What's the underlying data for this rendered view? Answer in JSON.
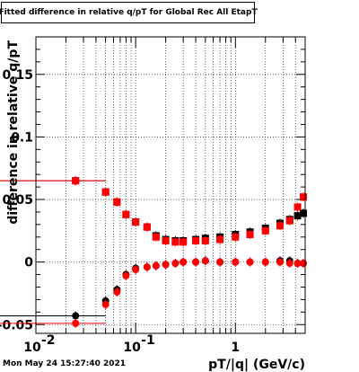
{
  "title": "Fitted difference in relative q/pT for Global Rec All EtapT",
  "timestamp": "Mon May 24 15:27:40 2021",
  "chart_data": {
    "type": "scatter",
    "title": "Fitted difference in relative q/pT for Global Rec All EtapT",
    "xlabel": "pT/|q| (GeV/c)",
    "ylabel": "difference in relative q/pT",
    "xscale": "log",
    "xlim": [
      0.01,
      5.0
    ],
    "ylim": [
      -0.057,
      0.18
    ],
    "grid": true,
    "x_ticks": [
      {
        "value": 0.01,
        "label": "10",
        "exp": "-2"
      },
      {
        "value": 0.1,
        "label": "10",
        "exp": "-1"
      },
      {
        "value": 1,
        "label": "1",
        "exp": ""
      }
    ],
    "y_ticks": [
      {
        "value": -0.05,
        "label": "-0.05"
      },
      {
        "value": 0,
        "label": "0"
      },
      {
        "value": 0.05,
        "label": "0.05"
      },
      {
        "value": 0.1,
        "label": "0.1"
      },
      {
        "value": 0.15,
        "label": "0.15"
      }
    ],
    "series": [
      {
        "color": "#000000",
        "marker": "square",
        "x": [
          0.025,
          0.05,
          0.065,
          0.08,
          0.1,
          0.13,
          0.16,
          0.2,
          0.25,
          0.3,
          0.4,
          0.5,
          0.7,
          1.0,
          1.4,
          2.0,
          2.8,
          3.5,
          4.2,
          4.8
        ],
        "y": [
          0.065,
          0.056,
          0.048,
          0.038,
          0.032,
          0.028,
          0.021,
          0.018,
          0.017,
          0.017,
          0.018,
          0.019,
          0.02,
          0.022,
          0.024,
          0.027,
          0.031,
          0.034,
          0.037,
          0.039
        ],
        "xerr_low": [
          0.025,
          0,
          0,
          0,
          0,
          0,
          0,
          0,
          0,
          0,
          0,
          0,
          0,
          0,
          0,
          0,
          0,
          0,
          0,
          0
        ],
        "xerr_high": [
          0.025,
          0,
          0,
          0,
          0,
          0,
          0,
          0,
          0,
          0,
          0,
          0,
          0,
          0,
          0,
          0,
          0,
          0,
          0,
          0
        ]
      },
      {
        "color": "#000000",
        "marker": "circle",
        "x": [
          0.025,
          0.05,
          0.065,
          0.08,
          0.1,
          0.13,
          0.16,
          0.2,
          0.25,
          0.3,
          0.4,
          0.5,
          0.7,
          1.0,
          1.4,
          2.0,
          2.8,
          3.5,
          4.2,
          4.8
        ],
        "y": [
          -0.043,
          -0.031,
          -0.022,
          -0.01,
          -0.005,
          -0.004,
          -0.003,
          -0.002,
          -0.001,
          0.0,
          0.0,
          0.001,
          0.0,
          0.0,
          0.0,
          0.0,
          0.001,
          0.001,
          -0.001,
          -0.001
        ],
        "xerr_low": [
          0.025,
          0,
          0,
          0,
          0,
          0,
          0,
          0,
          0,
          0,
          0,
          0,
          0,
          0,
          0,
          0,
          0,
          0,
          0,
          0
        ],
        "xerr_high": [
          0.025,
          0,
          0,
          0,
          0,
          0,
          0,
          0,
          0,
          0,
          0,
          0,
          0,
          0,
          0,
          0,
          0,
          0,
          0,
          0
        ]
      },
      {
        "color": "#ff0000",
        "marker": "square",
        "x": [
          0.025,
          0.05,
          0.065,
          0.08,
          0.1,
          0.13,
          0.16,
          0.2,
          0.25,
          0.3,
          0.4,
          0.5,
          0.7,
          1.0,
          1.4,
          2.0,
          2.8,
          3.5,
          4.2,
          4.8
        ],
        "y": [
          0.065,
          0.056,
          0.048,
          0.038,
          0.032,
          0.028,
          0.02,
          0.017,
          0.016,
          0.016,
          0.017,
          0.017,
          0.018,
          0.02,
          0.022,
          0.025,
          0.029,
          0.033,
          0.044,
          0.052
        ],
        "xerr_low": [
          0.025,
          0,
          0,
          0,
          0,
          0,
          0,
          0,
          0,
          0,
          0,
          0,
          0,
          0,
          0,
          0,
          0,
          0,
          0,
          0
        ],
        "xerr_high": [
          0.025,
          0,
          0,
          0,
          0,
          0,
          0,
          0,
          0,
          0,
          0,
          0,
          0,
          0,
          0,
          0,
          0,
          0,
          0,
          0
        ]
      },
      {
        "color": "#ff0000",
        "marker": "circle",
        "x": [
          0.025,
          0.05,
          0.065,
          0.08,
          0.1,
          0.13,
          0.16,
          0.2,
          0.25,
          0.3,
          0.4,
          0.5,
          0.7,
          1.0,
          1.4,
          2.0,
          2.8,
          3.5,
          4.2,
          4.8
        ],
        "y": [
          -0.049,
          -0.034,
          -0.024,
          -0.011,
          -0.006,
          -0.004,
          -0.003,
          -0.002,
          -0.001,
          0.0,
          0.0,
          0.001,
          0.0,
          0.0,
          0.0,
          0.0,
          0.0,
          -0.001,
          -0.001,
          -0.001
        ],
        "xerr_low": [
          0.025,
          0,
          0,
          0,
          0,
          0,
          0,
          0,
          0,
          0,
          0,
          0,
          0,
          0,
          0,
          0,
          0,
          0,
          0,
          0
        ],
        "xerr_high": [
          0.025,
          0,
          0,
          0,
          0,
          0,
          0,
          0,
          0,
          0,
          0,
          0,
          0,
          0,
          0,
          0,
          0,
          0,
          0,
          0
        ]
      }
    ]
  }
}
